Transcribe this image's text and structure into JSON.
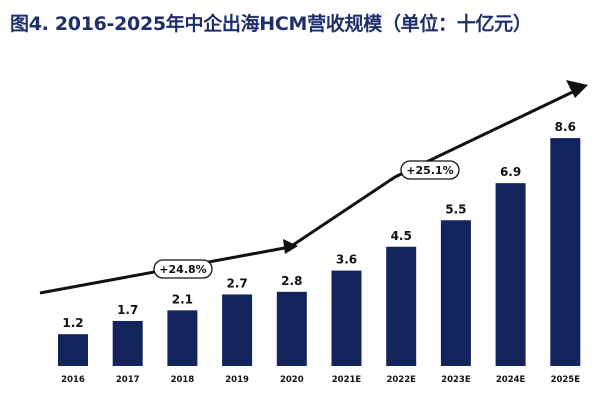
{
  "title": "图4.  2016-2025年中企出海HCM营收规模（单位：十亿元）",
  "chart_data": {
    "type": "bar",
    "title": "图4.  2016-2025年中企出海HCM营收规模（单位：十亿元）",
    "categories": [
      "2016",
      "2017",
      "2018",
      "2019",
      "2020",
      "2021E",
      "2022E",
      "2023E",
      "2024E",
      "2025E"
    ],
    "values": [
      1.2,
      1.7,
      2.1,
      2.7,
      2.8,
      3.6,
      4.5,
      5.5,
      6.9,
      8.6
    ],
    "value_labels": [
      "1.2",
      "1.7",
      "2.1",
      "2.7",
      "2.8",
      "3.6",
      "4.5",
      "5.5",
      "6.9",
      "8.6"
    ],
    "xlabel": "",
    "ylabel": "",
    "ylim": [
      0,
      9
    ],
    "grid": false,
    "bar_color": "#13235c",
    "annotations": [
      {
        "text": "+24.8%",
        "period": "2016-2020"
      },
      {
        "text": "+25.1%",
        "period": "2020-2025E"
      }
    ]
  },
  "colors": {
    "title": "#1f2f6b",
    "bar": "#13235c",
    "arrow": "#111111"
  }
}
